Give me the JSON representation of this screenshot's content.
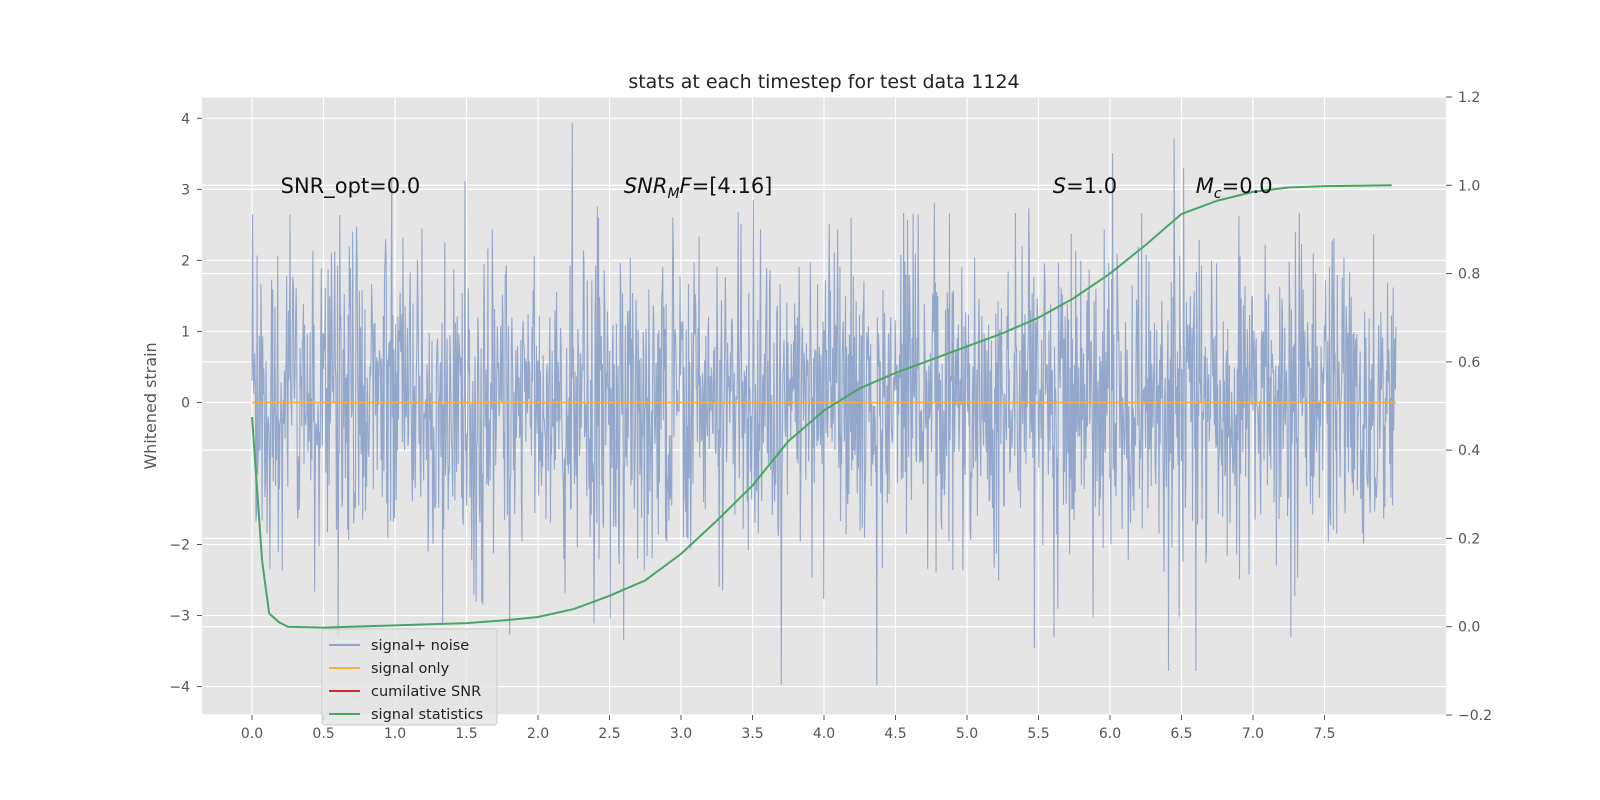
{
  "chart_data": {
    "type": "line",
    "title": "stats at each timestep for test data 1124",
    "ylabel": "Whitened strain",
    "xlim": [
      -0.35,
      8.35
    ],
    "ylim": [
      -4.4,
      4.3
    ],
    "ylim_right": [
      -0.2,
      1.2
    ],
    "grid": true,
    "legend_position": "lower-left",
    "x_ticks": [
      "0.0",
      "0.5",
      "1.0",
      "1.5",
      "2.0",
      "2.5",
      "3.0",
      "3.5",
      "4.0",
      "4.5",
      "5.0",
      "5.5",
      "6.0",
      "6.5",
      "7.0",
      "7.5"
    ],
    "y_ticks": [
      "4",
      "3",
      "2",
      "1",
      "0",
      "−2",
      "−3",
      "−4"
    ],
    "y_ticks_right": [
      "1.2",
      "1.0",
      "0.8",
      "0.6",
      "0.4",
      "0.2",
      "0.0",
      "−0.2"
    ],
    "annotations": [
      {
        "label": "SNR_opt=0.0",
        "x": 0.2,
        "y": 3.05
      },
      {
        "label": "SNR_MF=[4.16]",
        "x": 2.6,
        "y": 3.05
      },
      {
        "label": "S=1.0",
        "x": 5.6,
        "y": 3.05
      },
      {
        "label": "M_c=0.0",
        "x": 6.6,
        "y": 3.05
      }
    ],
    "series": [
      {
        "name": "signal+ noise",
        "color": "#8da3c9",
        "noise": {
          "x_start": 0.0,
          "x_end": 8.0,
          "samples": 2048,
          "notable_peaks": [
            [
              0.005,
              2.65
            ],
            [
              2.24,
              3.93
            ],
            [
              1.49,
              3.12
            ],
            [
              3.7,
              -3.97
            ],
            [
              4.37,
              -3.98
            ],
            [
              6.02,
              3.51
            ],
            [
              6.45,
              3.72
            ],
            [
              6.41,
              -3.78
            ],
            [
              6.6,
              -3.78
            ],
            [
              5.47,
              -3.46
            ],
            [
              2.6,
              -3.35
            ],
            [
              1.8,
              -3.27
            ]
          ]
        }
      },
      {
        "name": "signal only",
        "color": "#f5b041",
        "x": [
          0.0,
          8.0
        ],
        "y": [
          0.0,
          0.0
        ]
      },
      {
        "name": "cumilative SNR",
        "color": "#d62728",
        "x": [],
        "y": []
      },
      {
        "name": "signal statistics",
        "color": "#4aa564",
        "axis": "right",
        "x": [
          0.0,
          0.07,
          0.12,
          0.19,
          0.25,
          0.5,
          1.0,
          1.5,
          1.75,
          2.0,
          2.25,
          2.5,
          2.75,
          3.0,
          3.25,
          3.5,
          3.75,
          4.0,
          4.25,
          4.5,
          4.75,
          5.0,
          5.25,
          5.5,
          5.75,
          6.0,
          6.25,
          6.5,
          6.75,
          7.0,
          7.25,
          7.5,
          7.75,
          7.97
        ],
        "y": [
          0.475,
          0.15,
          0.03,
          0.01,
          0.0,
          -0.002,
          0.003,
          0.008,
          0.014,
          0.022,
          0.04,
          0.07,
          0.105,
          0.165,
          0.24,
          0.32,
          0.42,
          0.49,
          0.54,
          0.575,
          0.605,
          0.635,
          0.665,
          0.7,
          0.745,
          0.8,
          0.865,
          0.935,
          0.965,
          0.985,
          0.995,
          0.998,
          0.999,
          1.0
        ]
      }
    ]
  }
}
